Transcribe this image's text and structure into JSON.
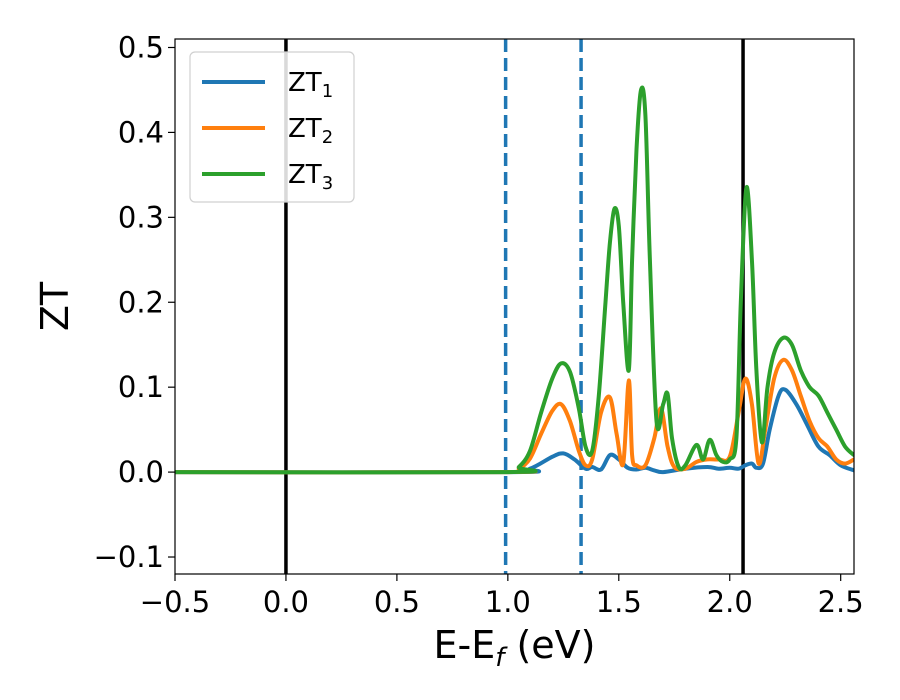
{
  "chart_data": {
    "type": "line",
    "xlabel": {
      "main": "E-E",
      "sub": "f",
      "unit": " (eV)"
    },
    "ylabel": "ZT",
    "xlim": [
      -0.5,
      2.56
    ],
    "ylim": [
      -0.12,
      0.51
    ],
    "xticks": [
      -0.5,
      0.0,
      0.5,
      1.0,
      1.5,
      2.0,
      2.5
    ],
    "xtick_labels": [
      "−0.5",
      "0.0",
      "0.5",
      "1.0",
      "1.5",
      "2.0",
      "2.5"
    ],
    "yticks": [
      -0.1,
      0.0,
      0.1,
      0.2,
      0.3,
      0.4,
      0.5
    ],
    "ytick_labels": [
      "−0.1",
      "0.0",
      "0.1",
      "0.2",
      "0.3",
      "0.4",
      "0.5"
    ],
    "legend_position": "top-left",
    "vlines": [
      {
        "x": 0.0,
        "style": "solid",
        "color": "#000000"
      },
      {
        "x": 2.06,
        "style": "solid",
        "color": "#000000"
      },
      {
        "x": 0.99,
        "style": "dashed",
        "color": "#1f77b4"
      },
      {
        "x": 1.33,
        "style": "dashed",
        "color": "#1f77b4"
      }
    ],
    "series": [
      {
        "name": "ZT",
        "sub": "1",
        "color": "#1f77b4",
        "x": [
          -0.5,
          1.0,
          1.1,
          1.2,
          1.25,
          1.3,
          1.35,
          1.38,
          1.42,
          1.46,
          1.5,
          1.54,
          1.58,
          1.62,
          1.66,
          1.7,
          1.8,
          1.9,
          1.95,
          2.0,
          2.04,
          2.07,
          2.1,
          2.12,
          2.15,
          2.18,
          2.22,
          2.25,
          2.3,
          2.35,
          2.4,
          2.45,
          2.5,
          2.56
        ],
        "y": [
          0.0,
          0.0,
          0.004,
          0.018,
          0.022,
          0.015,
          0.004,
          0.006,
          0.003,
          0.02,
          0.015,
          0.005,
          0.003,
          0.005,
          0.002,
          0.0,
          0.004,
          0.006,
          0.004,
          0.005,
          0.004,
          0.008,
          0.01,
          0.005,
          0.01,
          0.05,
          0.09,
          0.097,
          0.08,
          0.055,
          0.03,
          0.02,
          0.008,
          0.002
        ]
      },
      {
        "name": "ZT",
        "sub": "2",
        "color": "#ff7f0e",
        "x": [
          -0.5,
          1.0,
          1.05,
          1.1,
          1.15,
          1.2,
          1.24,
          1.28,
          1.32,
          1.35,
          1.38,
          1.42,
          1.46,
          1.49,
          1.52,
          1.545,
          1.56,
          1.58,
          1.62,
          1.66,
          1.69,
          1.72,
          1.75,
          1.8,
          1.85,
          1.9,
          1.95,
          2.0,
          2.04,
          2.07,
          2.1,
          2.13,
          2.16,
          2.2,
          2.24,
          2.28,
          2.32,
          2.36,
          2.4,
          2.44,
          2.48,
          2.52,
          2.56
        ],
        "y": [
          0.0,
          0.0,
          0.004,
          0.016,
          0.045,
          0.072,
          0.08,
          0.06,
          0.025,
          0.008,
          0.015,
          0.07,
          0.088,
          0.045,
          0.01,
          0.108,
          0.02,
          0.008,
          0.008,
          0.04,
          0.075,
          0.03,
          0.006,
          0.004,
          0.012,
          0.015,
          0.015,
          0.018,
          0.07,
          0.11,
          0.08,
          0.01,
          0.05,
          0.11,
          0.132,
          0.12,
          0.09,
          0.06,
          0.04,
          0.03,
          0.015,
          0.01,
          0.015
        ]
      },
      {
        "name": "ZT",
        "sub": "3",
        "color": "#2ca02c",
        "x": [
          -0.5,
          1.0,
          1.05,
          1.1,
          1.15,
          1.2,
          1.24,
          1.28,
          1.32,
          1.35,
          1.38,
          1.41,
          1.44,
          1.46,
          1.48,
          1.5,
          1.52,
          1.545,
          1.56,
          1.58,
          1.6,
          1.62,
          1.64,
          1.67,
          1.7,
          1.72,
          1.74,
          1.77,
          1.8,
          1.85,
          1.88,
          1.91,
          1.94,
          1.97,
          2.0,
          2.03,
          2.05,
          2.075,
          2.1,
          2.12,
          2.145,
          2.17,
          2.2,
          2.24,
          2.28,
          2.32,
          2.36,
          2.4,
          2.44,
          2.48,
          2.52,
          2.56
        ],
        "y": [
          0.0,
          0.0,
          0.006,
          0.025,
          0.07,
          0.11,
          0.128,
          0.118,
          0.075,
          0.03,
          0.025,
          0.09,
          0.2,
          0.27,
          0.31,
          0.29,
          0.2,
          0.12,
          0.25,
          0.38,
          0.45,
          0.42,
          0.25,
          0.06,
          0.08,
          0.092,
          0.04,
          0.006,
          0.008,
          0.032,
          0.015,
          0.038,
          0.02,
          0.012,
          0.015,
          0.04,
          0.2,
          0.335,
          0.25,
          0.12,
          0.035,
          0.1,
          0.14,
          0.158,
          0.15,
          0.12,
          0.1,
          0.09,
          0.07,
          0.05,
          0.03,
          0.02
        ]
      }
    ]
  }
}
